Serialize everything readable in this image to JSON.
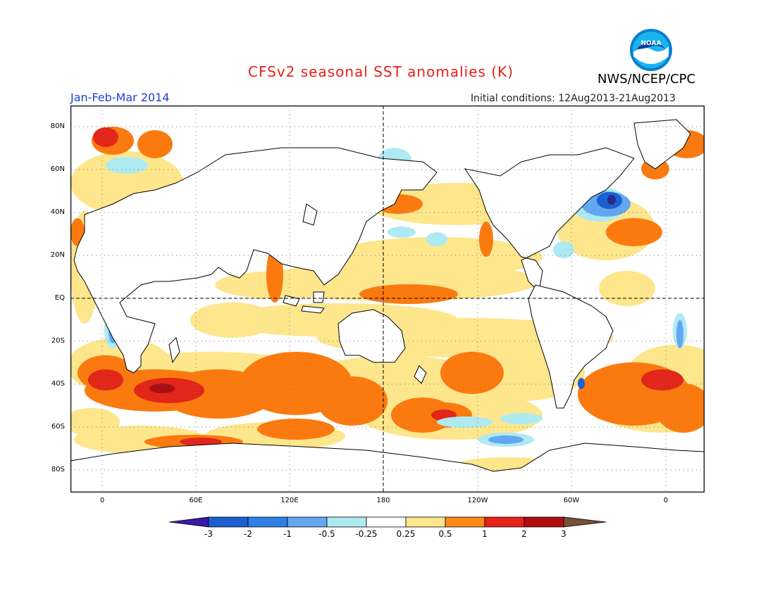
{
  "header": {
    "title": "CFSv2 seasonal SST anomalies (K)",
    "period": "Jan-Feb-Mar 2014",
    "initial_conditions": "Initial conditions: 12Aug2013-21Aug2013",
    "agency": "NWS/NCEP/CPC",
    "logo_text": "NOAA",
    "logo_icon": "noaa-logo-icon"
  },
  "map": {
    "lat_labels": [
      "80N",
      "60N",
      "40N",
      "20N",
      "EQ",
      "20S",
      "40S",
      "60S",
      "80S"
    ],
    "lon_labels": [
      "0",
      "60E",
      "120E",
      "180",
      "120W",
      "60W",
      "0"
    ],
    "grid": "dotted",
    "reference_lines": [
      "EQ",
      "180"
    ]
  },
  "colorbar": {
    "labels": [
      "-3",
      "-2",
      "-1",
      "-0.5",
      "-0.25",
      "0.25",
      "0.5",
      "1",
      "2",
      "3"
    ],
    "colors": [
      "#3a1aa6",
      "#1c5fd0",
      "#2e7fe6",
      "#62a7ef",
      "#aeeaf2",
      "#ffffff",
      "#fde68c",
      "#fd8a18",
      "#e8231a",
      "#b00e0e",
      "#7a4e3a"
    ]
  },
  "palette": {
    "warm_light": "#fde68c",
    "warm": "#fb7a10",
    "hot": "#e2261a",
    "hottest": "#a80f12",
    "cool_light": "#aeeaf2",
    "cool": "#62a7ef",
    "cold": "#1c5fd0",
    "coldest": "#2a2a8a"
  }
}
